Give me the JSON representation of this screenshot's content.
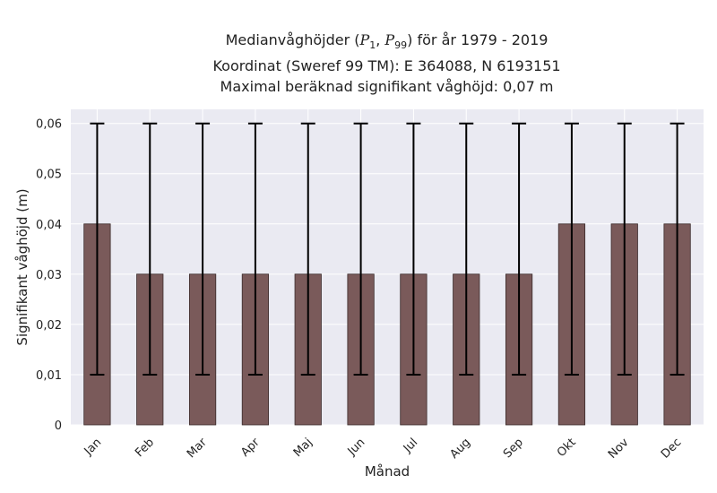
{
  "title": {
    "prefix": "Medianvåghöjder (",
    "p_symbol": "P",
    "p_low": "1",
    "p_high": "99",
    "suffix": ") för år 1979 - 2019",
    "line2": "Koordinat (Sweref 99 TM): E 364088, N 6193151",
    "line3": "Maximal beräknad signifikant våghöjd: 0,07 m"
  },
  "colors": {
    "plot_background": "#eaeaf2",
    "grid": "#ffffff",
    "bar_fill": "#7a5a5a",
    "bar_edge": "#3a2a2a",
    "error_bar": "#000000"
  },
  "chart_data": {
    "type": "bar",
    "xlabel": "Månad",
    "ylabel": "Signifikant våghöjd (m)",
    "categories": [
      "Jan",
      "Feb",
      "Mar",
      "Apr",
      "Maj",
      "Jun",
      "Jul",
      "Aug",
      "Sep",
      "Okt",
      "Nov",
      "Dec"
    ],
    "values": [
      0.04,
      0.03,
      0.03,
      0.03,
      0.03,
      0.03,
      0.03,
      0.03,
      0.03,
      0.04,
      0.04,
      0.04
    ],
    "error_low": [
      0.01,
      0.01,
      0.01,
      0.01,
      0.01,
      0.01,
      0.01,
      0.01,
      0.01,
      0.01,
      0.01,
      0.01
    ],
    "error_high": [
      0.06,
      0.06,
      0.06,
      0.06,
      0.06,
      0.06,
      0.06,
      0.06,
      0.06,
      0.06,
      0.06,
      0.06
    ],
    "ylim": [
      0,
      0.0628
    ],
    "yticks": [
      0,
      0.01,
      0.02,
      0.03,
      0.04,
      0.05,
      0.06
    ],
    "ytick_labels": [
      "0",
      "0,01",
      "0,02",
      "0,03",
      "0,04",
      "0,05",
      "0,06"
    ],
    "grid": true,
    "legend": "none"
  }
}
